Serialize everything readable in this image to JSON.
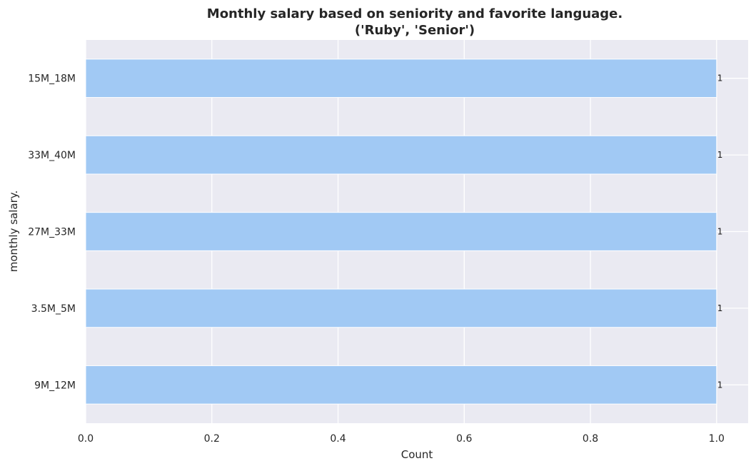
{
  "chart_data": {
    "type": "bar",
    "orientation": "horizontal",
    "title": "Monthly salary based on seniority and favorite language.",
    "subtitle": "('Ruby', 'Senior')",
    "xlabel": "Count",
    "ylabel": "monthly salary.",
    "categories": [
      "15M_18M",
      "33M_40M",
      "27M_33M",
      "3.5M_5M",
      "9M_12M"
    ],
    "values": [
      1,
      1,
      1,
      1,
      1
    ],
    "data_labels": [
      "1",
      "1",
      "1",
      "1",
      "1"
    ],
    "xlim": [
      0,
      1.05
    ],
    "xticks": [
      0.0,
      0.2,
      0.4,
      0.6,
      0.8,
      1.0
    ],
    "xtick_labels": [
      "0.0",
      "0.2",
      "0.4",
      "0.6",
      "0.8",
      "1.0"
    ],
    "grid": true,
    "colors": {
      "bar": "#a1c9f4",
      "plot_background": "#eaeaf2",
      "grid": "#ffffff"
    }
  }
}
